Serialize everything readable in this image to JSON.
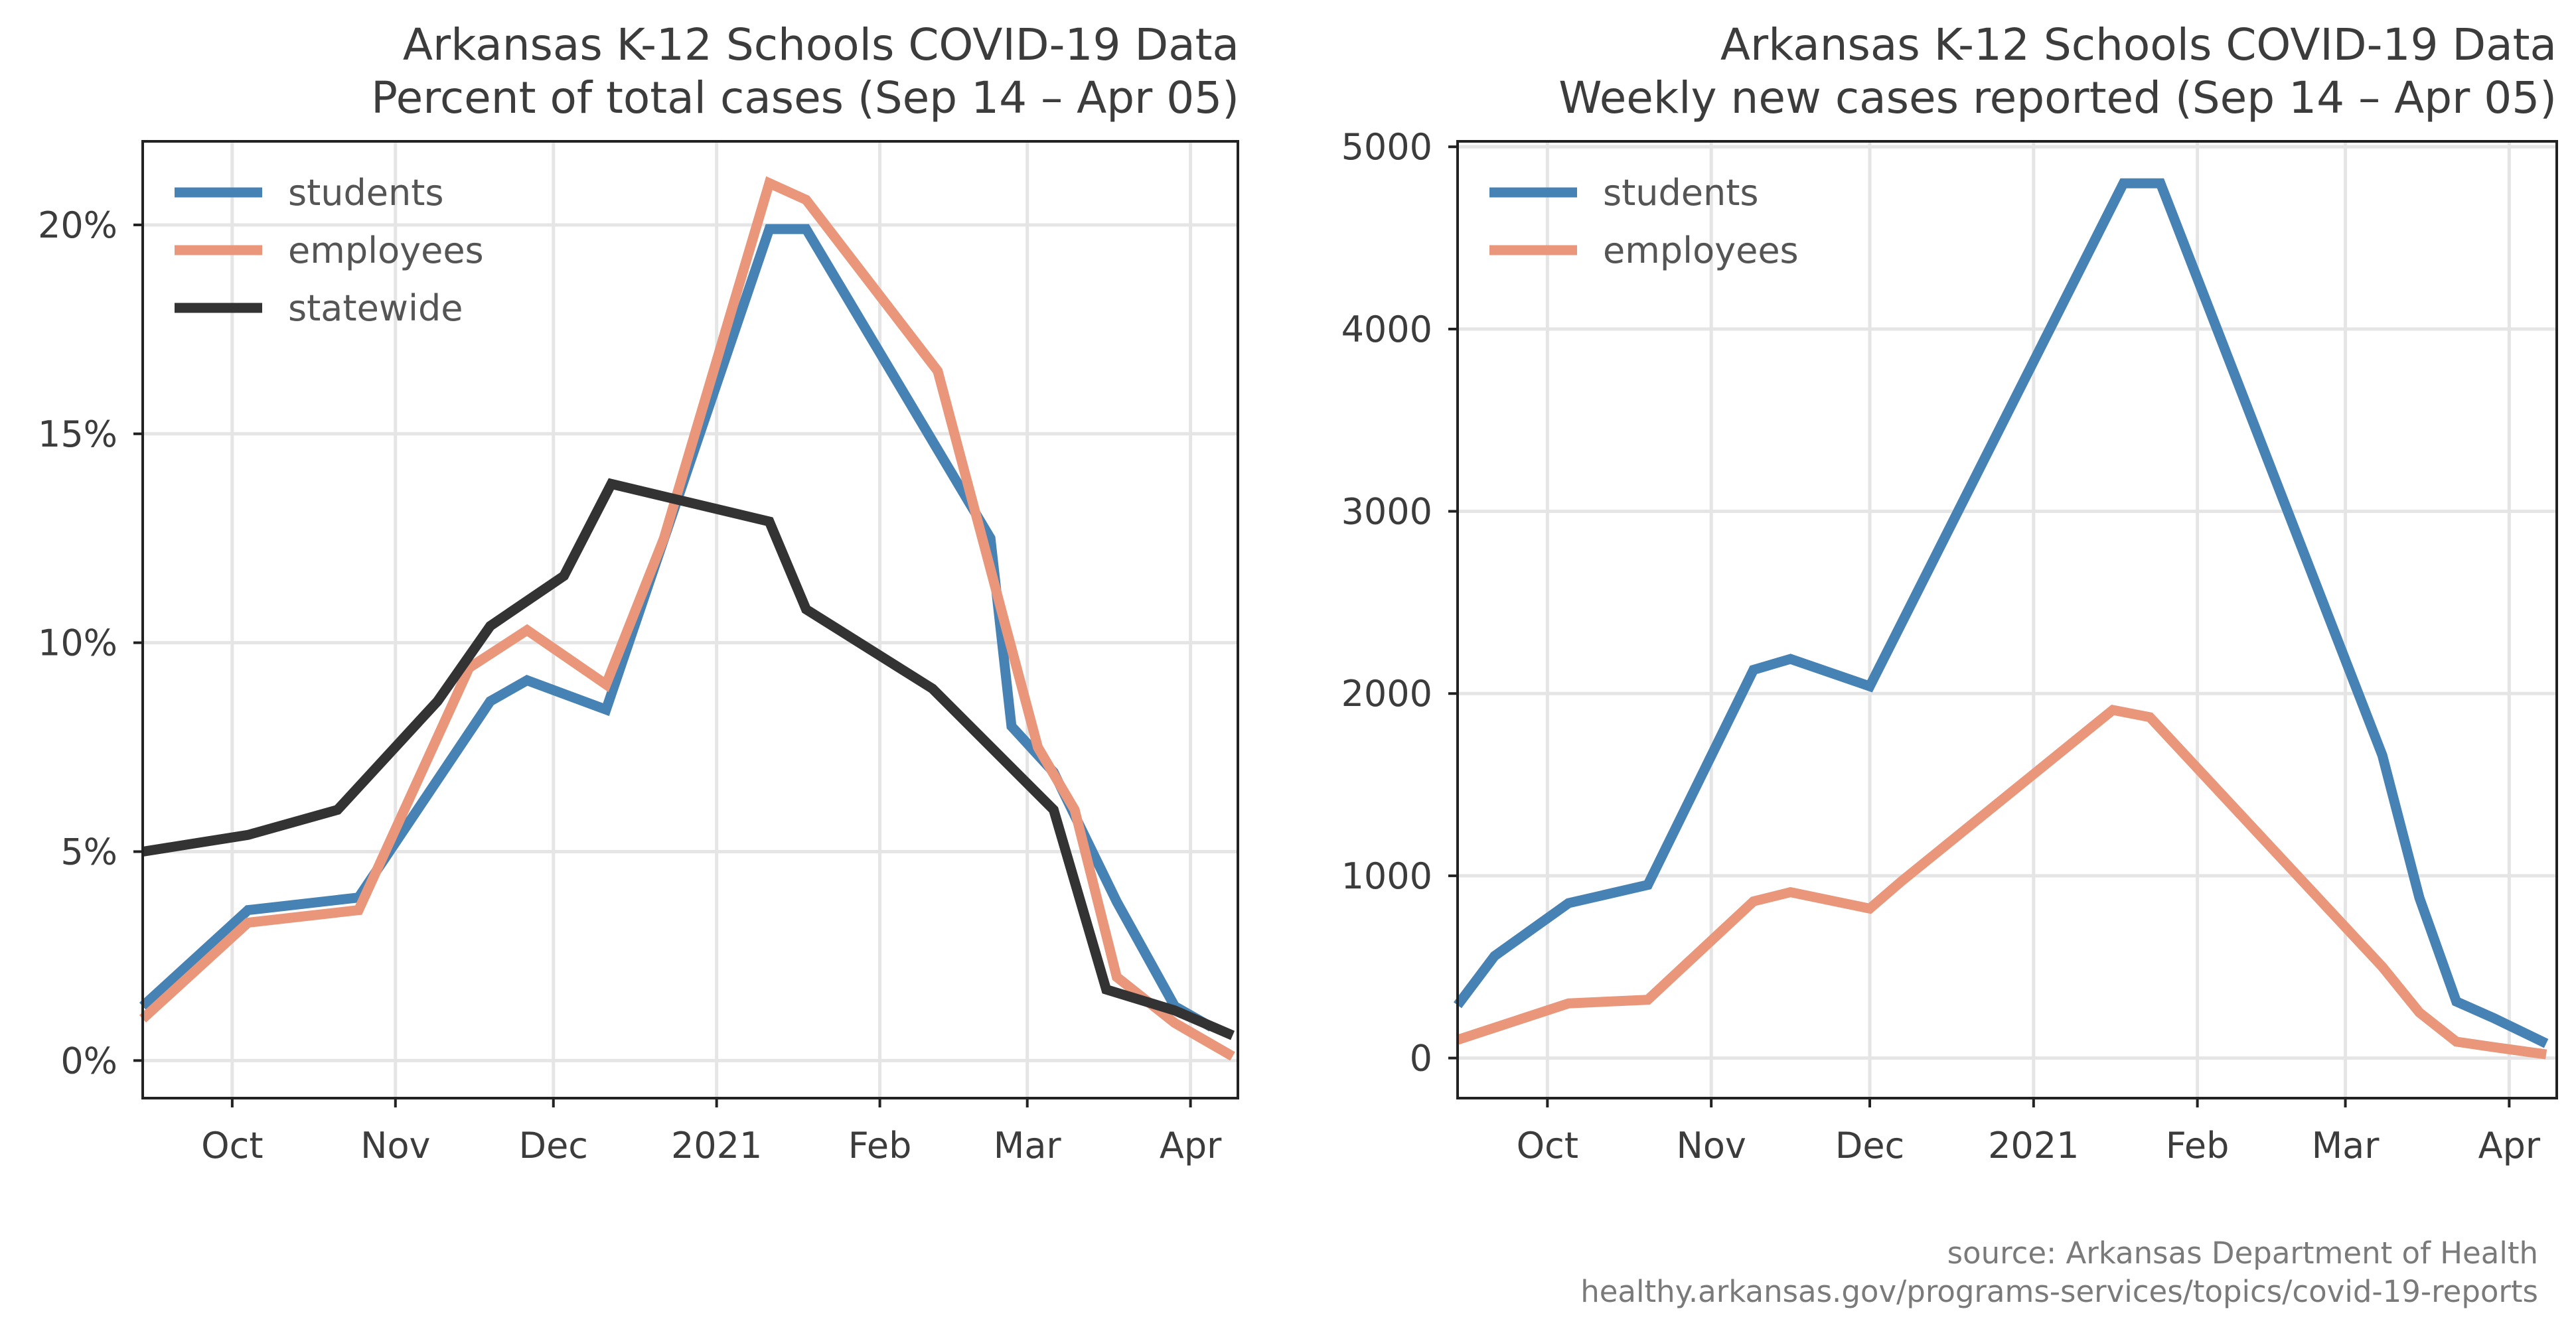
{
  "source": {
    "line1": "source: Arkansas Department of Health",
    "line2": "healthy.arkansas.gov/programs-services/topics/covid-19-reports"
  },
  "colors": {
    "students": "#4682b4",
    "employees": "#e9967a",
    "statewide": "#333333",
    "grid": "#e5e5e5",
    "axis": "#222222",
    "text": "#3c3c3c"
  },
  "chart_data": [
    {
      "type": "line",
      "title": "Arkansas K-12 Schools COVID-19 Data",
      "subtitle": "Percent of total cases (Sep 14 – Apr 05)",
      "xlabel": "",
      "ylabel": "",
      "x_unit": "days since 2020-09-14",
      "xlim": [
        0,
        208
      ],
      "ylim": [
        -0.9,
        22
      ],
      "grid": true,
      "legend": "top-left",
      "x_ticks": [
        {
          "value": 17,
          "label": "Oct"
        },
        {
          "value": 48,
          "label": "Nov"
        },
        {
          "value": 78,
          "label": "Dec"
        },
        {
          "value": 109,
          "label": "2021"
        },
        {
          "value": 140,
          "label": "Feb"
        },
        {
          "value": 168,
          "label": "Mar"
        },
        {
          "value": 199,
          "label": "Apr"
        }
      ],
      "y_ticks": [
        {
          "value": 0,
          "label": "0%"
        },
        {
          "value": 5,
          "label": "5%"
        },
        {
          "value": 10,
          "label": "10%"
        },
        {
          "value": 15,
          "label": "15%"
        },
        {
          "value": 20,
          "label": "20%"
        }
      ],
      "series": [
        {
          "name": "students",
          "color": "#4682b4",
          "x": [
            0,
            20,
            41,
            66,
            73,
            88,
            119,
            126,
            161,
            165,
            173,
            185,
            196,
            203
          ],
          "y": [
            1.3,
            3.6,
            3.9,
            8.6,
            9.1,
            8.4,
            19.9,
            19.9,
            12.5,
            8.0,
            6.9,
            3.8,
            1.3,
            0.8
          ]
        },
        {
          "name": "employees",
          "color": "#e9967a",
          "x": [
            0,
            20,
            41,
            62,
            73,
            88,
            99,
            119,
            126,
            151,
            170,
            177,
            185,
            196,
            207
          ],
          "y": [
            1.0,
            3.3,
            3.6,
            9.4,
            10.3,
            9.0,
            12.5,
            21.0,
            20.6,
            16.5,
            7.5,
            6.0,
            2.0,
            0.9,
            0.1
          ]
        },
        {
          "name": "statewide",
          "color": "#333333",
          "x": [
            0,
            10,
            20,
            37,
            56,
            66,
            80,
            89,
            119,
            126,
            150,
            173,
            183,
            196,
            207
          ],
          "y": [
            5.0,
            5.2,
            5.4,
            6.0,
            8.6,
            10.4,
            11.6,
            13.8,
            12.9,
            10.8,
            8.9,
            6.0,
            1.7,
            1.2,
            0.6
          ]
        }
      ]
    },
    {
      "type": "line",
      "title": "Arkansas K-12 Schools COVID-19 Data",
      "subtitle": "Weekly new cases reported (Sep 14 – Apr 05)",
      "xlabel": "",
      "ylabel": "",
      "x_unit": "days since 2020-09-14",
      "xlim": [
        0,
        208
      ],
      "ylim": [
        -220,
        5030
      ],
      "grid": true,
      "legend": "top-left",
      "x_ticks": [
        {
          "value": 17,
          "label": "Oct"
        },
        {
          "value": 48,
          "label": "Nov"
        },
        {
          "value": 78,
          "label": "Dec"
        },
        {
          "value": 109,
          "label": "2021"
        },
        {
          "value": 140,
          "label": "Feb"
        },
        {
          "value": 168,
          "label": "Mar"
        },
        {
          "value": 199,
          "label": "Apr"
        }
      ],
      "y_ticks": [
        {
          "value": 0,
          "label": "0"
        },
        {
          "value": 1000,
          "label": "1000"
        },
        {
          "value": 2000,
          "label": "2000"
        },
        {
          "value": 3000,
          "label": "3000"
        },
        {
          "value": 4000,
          "label": "4000"
        },
        {
          "value": 5000,
          "label": "5000"
        }
      ],
      "series": [
        {
          "name": "students",
          "color": "#4682b4",
          "x": [
            0,
            7,
            21,
            36,
            56,
            63,
            78,
            126,
            133,
            175,
            182,
            189,
            196,
            206
          ],
          "y": [
            290,
            560,
            850,
            950,
            2130,
            2190,
            2040,
            4800,
            4800,
            1660,
            880,
            310,
            220,
            80
          ]
        },
        {
          "name": "employees",
          "color": "#e9967a",
          "x": [
            0,
            21,
            36,
            56,
            63,
            78,
            84,
            124,
            131,
            175,
            182,
            189,
            196,
            206
          ],
          "y": [
            100,
            300,
            320,
            860,
            910,
            820,
            970,
            1910,
            1870,
            500,
            250,
            90,
            60,
            20
          ]
        }
      ]
    }
  ]
}
